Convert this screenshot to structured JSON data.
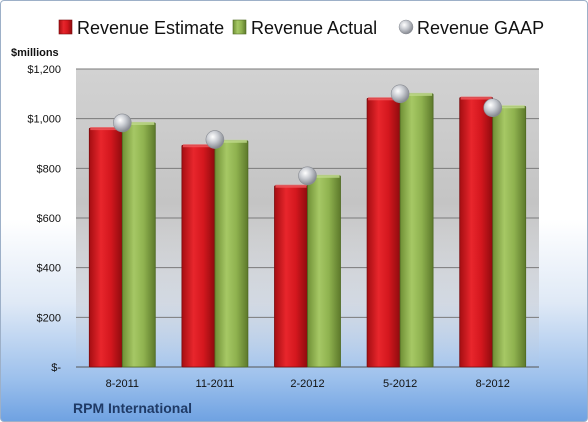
{
  "chart_data": {
    "type": "bar",
    "categories": [
      "8-2011",
      "11-2011",
      "2-2012",
      "5-2012",
      "8-2012"
    ],
    "series": [
      {
        "name": "Revenue Estimate",
        "values": [
          962,
          893,
          730,
          1082,
          1085
        ],
        "color": "#d4171e",
        "marker": "bar"
      },
      {
        "name": "Revenue Actual",
        "values": [
          983,
          911,
          770,
          1100,
          1050
        ],
        "color": "#8fb24f",
        "marker": "bar"
      },
      {
        "name": "Revenue GAAP",
        "values": [
          983,
          916,
          770,
          1100,
          1044
        ],
        "color": "#b9bcc2",
        "marker": "sphere"
      }
    ],
    "ylabel": "$millions",
    "ylim": [
      0,
      1200
    ],
    "yticks": [
      0,
      200,
      400,
      600,
      800,
      1000,
      1200
    ],
    "ytick_labels": [
      "$-",
      "$200",
      "$400",
      "$600",
      "$800",
      "$1,000",
      "$1,200"
    ],
    "grid": true,
    "legend": "top",
    "plot_background": "#c9c9c9"
  },
  "footer": {
    "company": "RPM International"
  }
}
